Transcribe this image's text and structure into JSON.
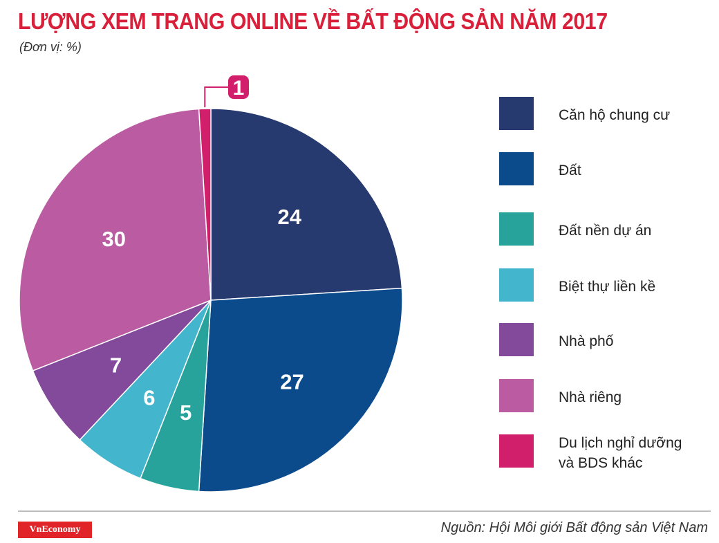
{
  "title": "LƯỢNG XEM TRANG ONLINE VỀ BẤT ĐỘNG SẢN NĂM 2017",
  "subtitle": "(Đơn vị: %)",
  "brand": "VnEconomy",
  "source": "Nguồn: Hội Môi giới Bất động sản Việt Nam",
  "chart_data": {
    "type": "pie",
    "title": "LƯỢNG XEM TRANG ONLINE VỀ BẤT ĐỘNG SẢN NĂM 2017",
    "unit": "%",
    "legend_position": "right",
    "slices": [
      {
        "label": "Căn hộ chung cư",
        "value": 24,
        "color": "#263a70"
      },
      {
        "label": "Đất",
        "value": 27,
        "color": "#0b4b8b"
      },
      {
        "label": "Đất nền dự án",
        "value": 5,
        "color": "#27a39c"
      },
      {
        "label": "Biệt thự liền kề",
        "value": 6,
        "color": "#43b5cc"
      },
      {
        "label": "Nhà phố",
        "value": 7,
        "color": "#834a9c"
      },
      {
        "label": "Nhà riêng",
        "value": 30,
        "color": "#bb5ba1"
      },
      {
        "label": "Du lịch nghỉ dưỡng\nvà BDS khác",
        "value": 1,
        "color": "#d21f6b"
      }
    ]
  }
}
